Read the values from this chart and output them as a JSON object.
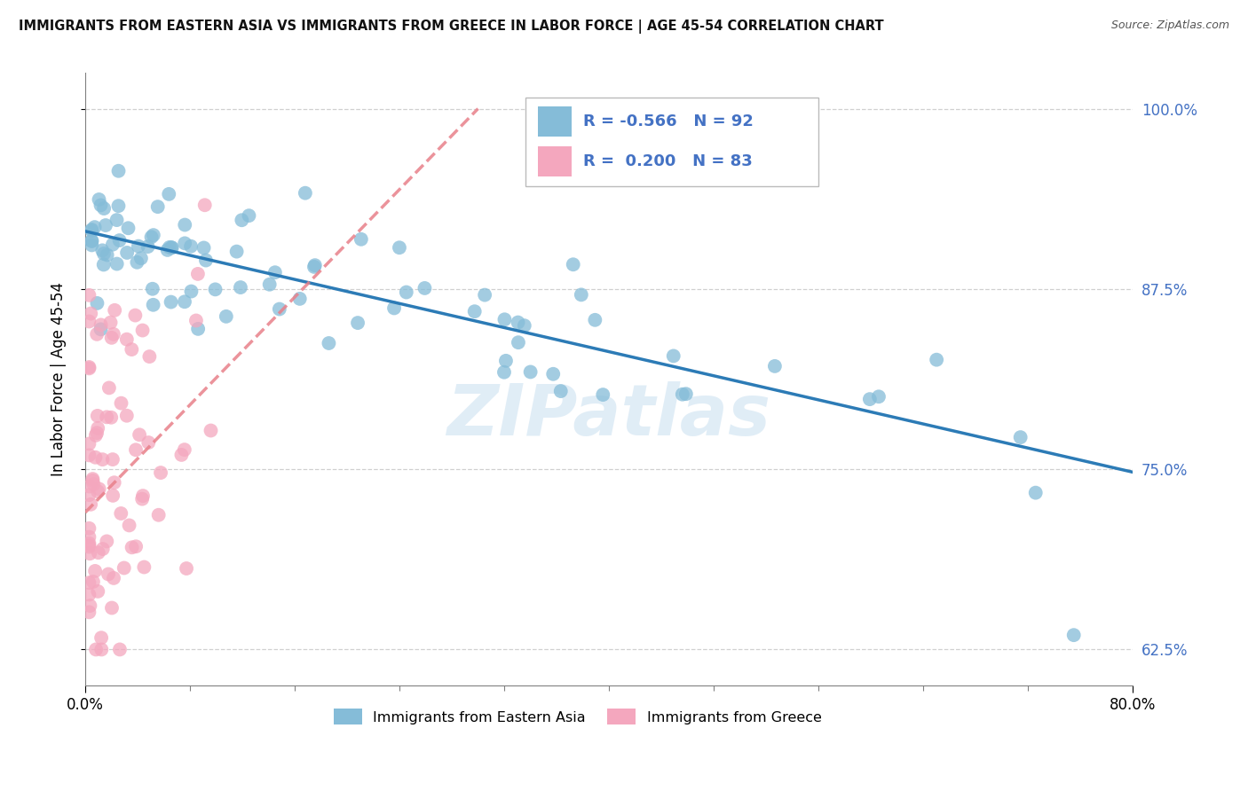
{
  "title": "IMMIGRANTS FROM EASTERN ASIA VS IMMIGRANTS FROM GREECE IN LABOR FORCE | AGE 45-54 CORRELATION CHART",
  "source": "Source: ZipAtlas.com",
  "ylabel": "In Labor Force | Age 45-54",
  "xlim": [
    0.0,
    0.8
  ],
  "ylim": [
    0.6,
    1.025
  ],
  "yticks": [
    0.625,
    0.75,
    0.875,
    1.0
  ],
  "ytick_labels": [
    "62.5%",
    "75.0%",
    "87.5%",
    "100.0%"
  ],
  "xtick_left_label": "0.0%",
  "xtick_right_label": "80.0%",
  "blue_color": "#85bcd8",
  "pink_color": "#f4a7be",
  "blue_line_color": "#2c7bb6",
  "pink_line_color": "#e8808a",
  "legend_label_blue": "Immigrants from Eastern Asia",
  "legend_label_pink": "Immigrants from Greece",
  "N_blue": 92,
  "N_pink": 83,
  "blue_R_str": "-0.566",
  "pink_R_str": "0.200",
  "watermark": "ZIPatlas",
  "grid_color": "#d0d0d0",
  "background_color": "#ffffff",
  "blue_trend_x0": 0.0,
  "blue_trend_y0": 0.915,
  "blue_trend_x1": 0.8,
  "blue_trend_y1": 0.748,
  "pink_trend_x0": 0.0,
  "pink_trend_y0": 0.72,
  "pink_trend_x1": 0.3,
  "pink_trend_y1": 1.0
}
